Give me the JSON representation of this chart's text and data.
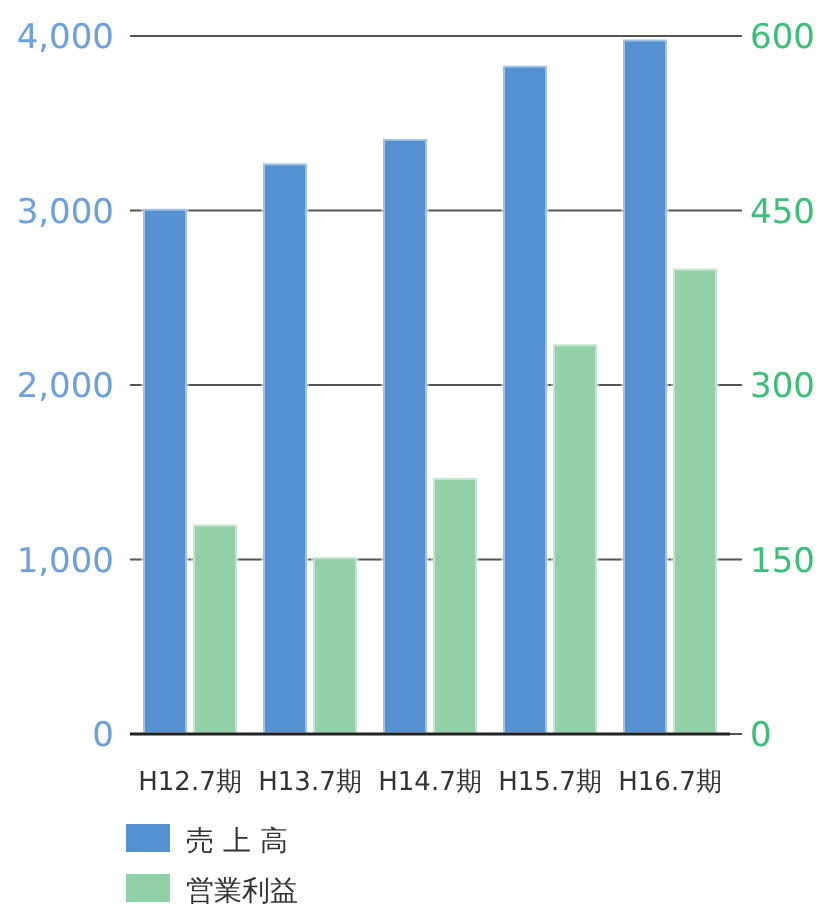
{
  "chart_data": {
    "type": "bar",
    "categories": [
      "H12.7期",
      "H13.7期",
      "H14.7期",
      "H15.7期",
      "H16.7期"
    ],
    "series": [
      {
        "name": "売 上 高",
        "color": "#5591d0",
        "values": [
          3010,
          3270,
          3410,
          3830,
          3980
        ]
      },
      {
        "name": "営業利益",
        "color": "#92d0a8",
        "axis": "y2",
        "values": [
          180,
          152,
          220,
          335,
          400
        ]
      }
    ],
    "ylim": [
      0,
      4000
    ],
    "yticks": [
      {
        "value": 0,
        "label": "0"
      },
      {
        "value": 1000,
        "label": "1,000"
      },
      {
        "value": 2000,
        "label": "2,000"
      },
      {
        "value": 3000,
        "label": "3,000"
      },
      {
        "value": 4000,
        "label": "4,000"
      }
    ],
    "y2lim": [
      0,
      600
    ],
    "y2ticks": [
      0,
      150,
      300,
      450,
      600
    ],
    "grid": "y",
    "legend": "bottom"
  }
}
